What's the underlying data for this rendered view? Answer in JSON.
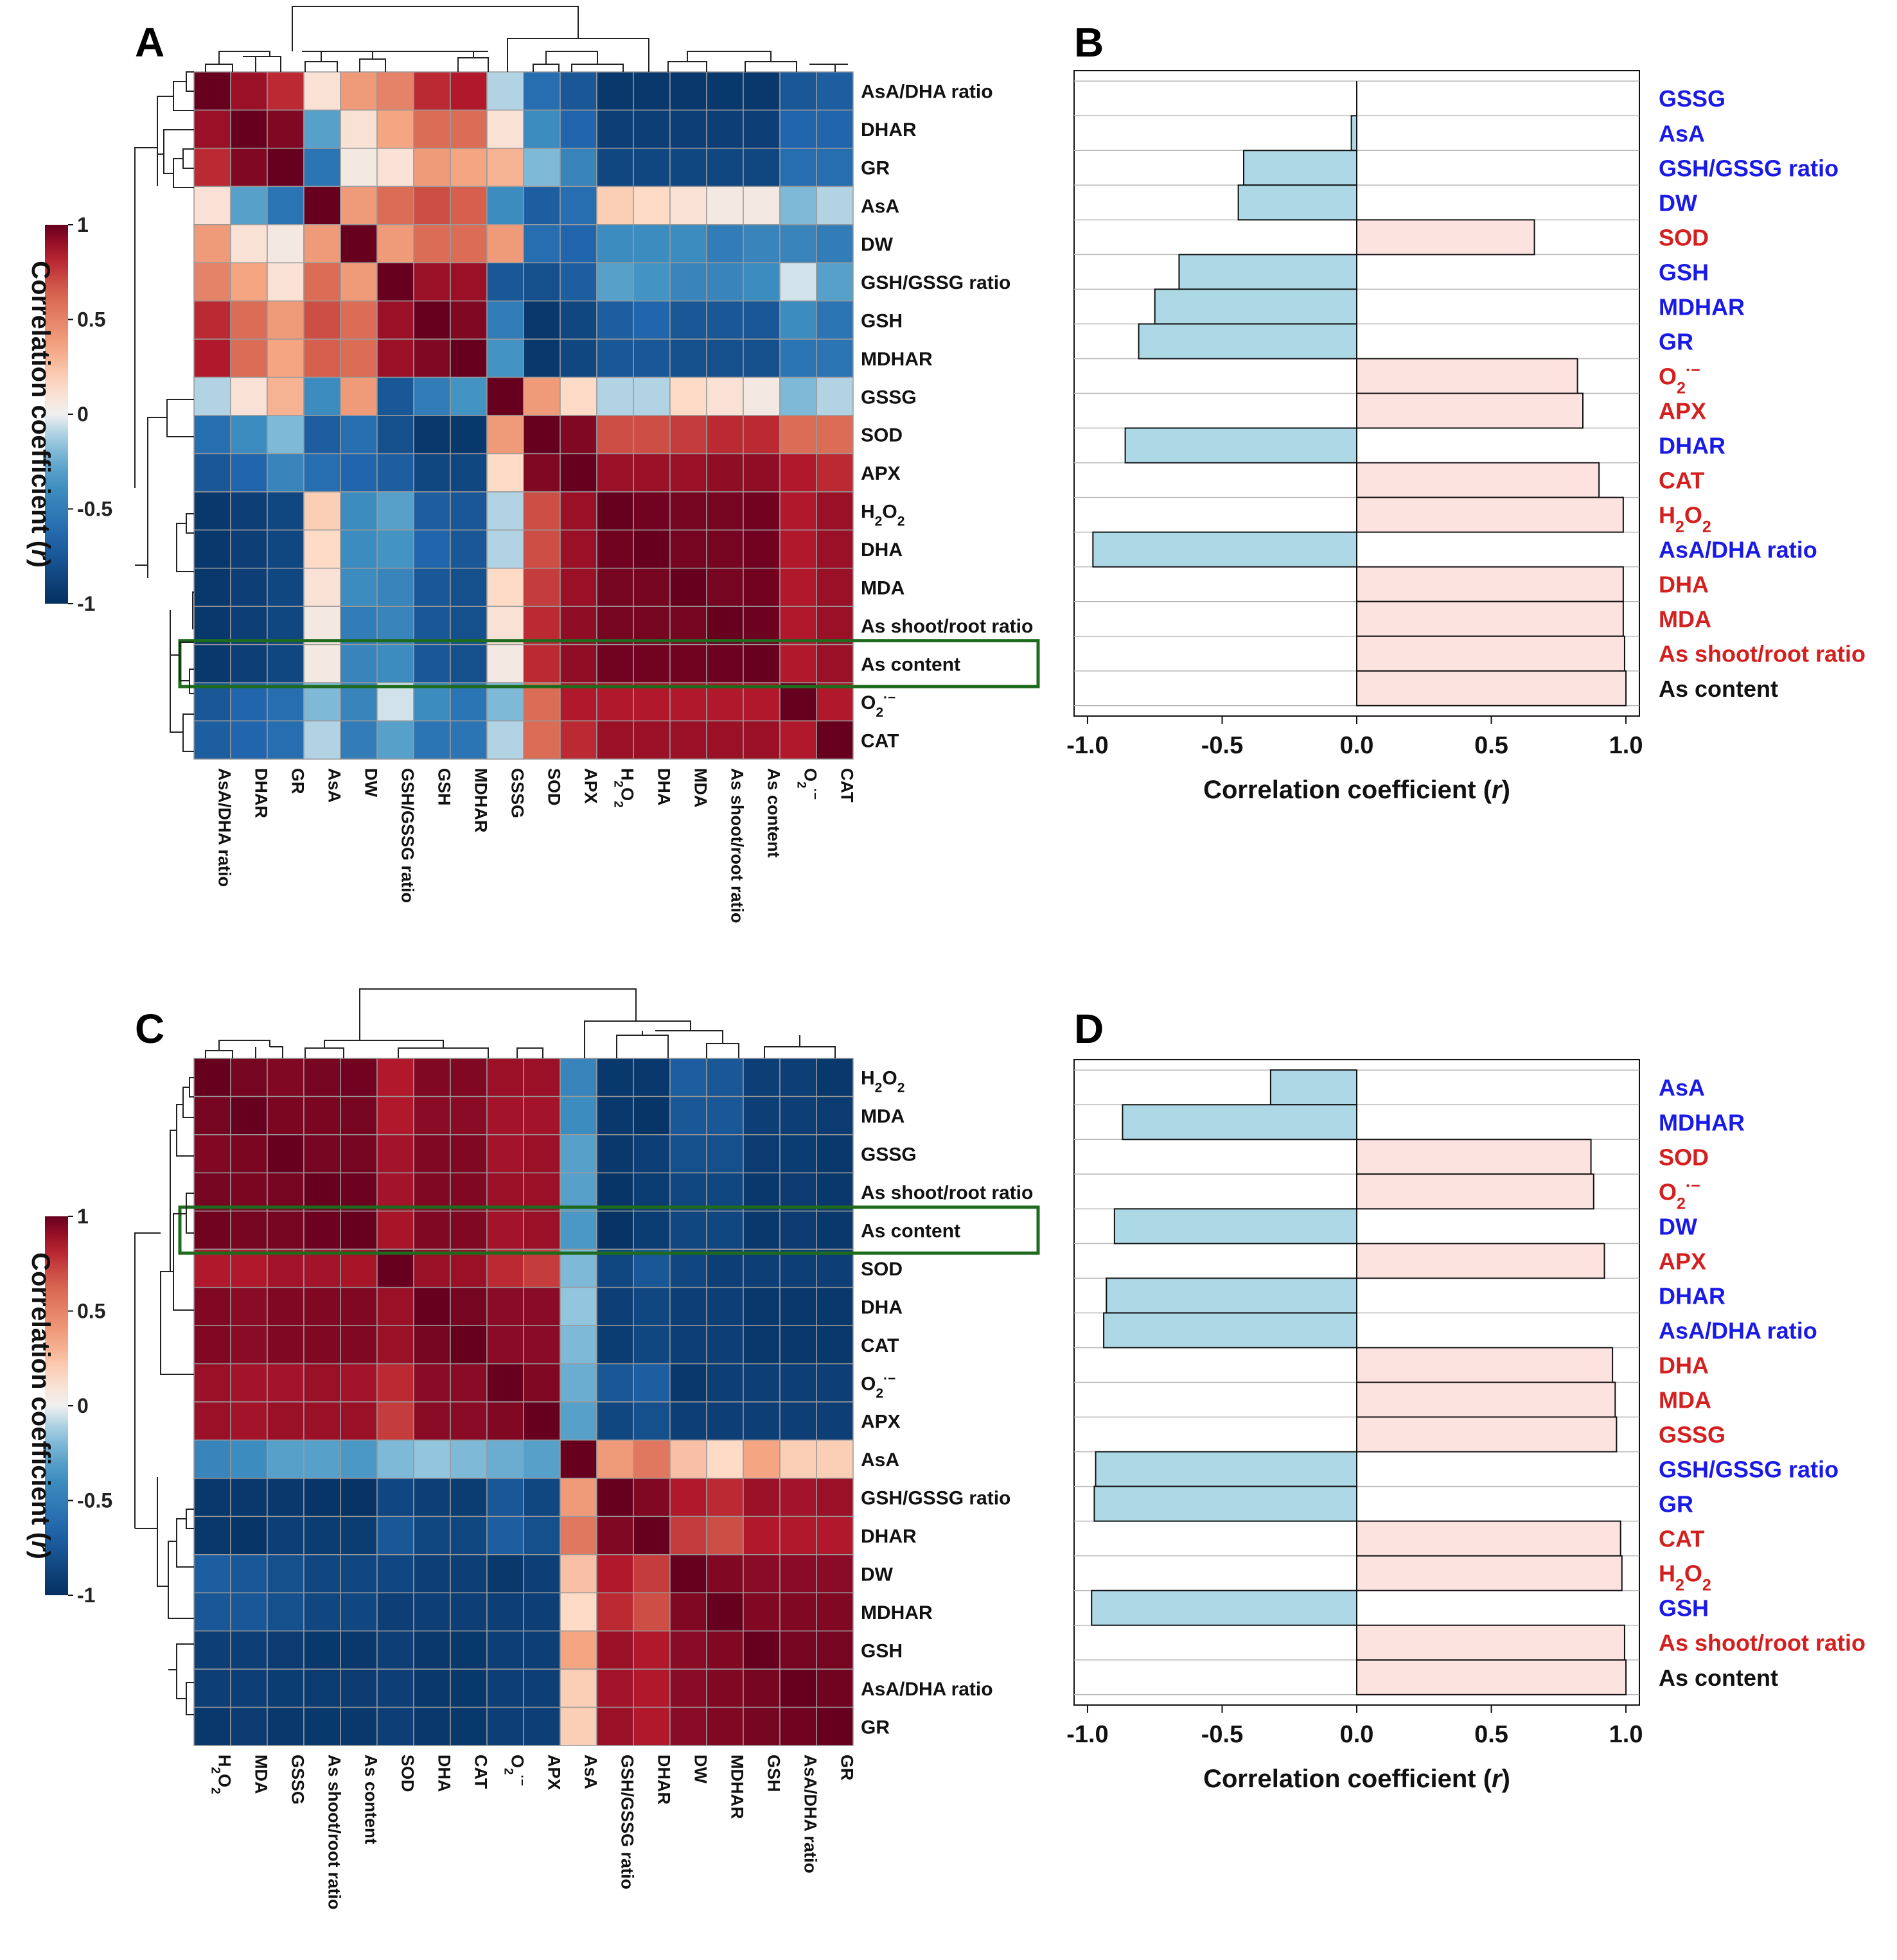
{
  "panels": {
    "A": {
      "letter": "A"
    },
    "B": {
      "letter": "B"
    },
    "C": {
      "letter": "C"
    },
    "D": {
      "letter": "D"
    }
  },
  "colors": {
    "positive": "#d41f1f",
    "negative": "#1a1ae6",
    "neutral": "#111111",
    "bar_pos": "#fde3e0",
    "bar_neg": "#add8e6",
    "highlight": "#1e6b1e"
  },
  "chart_data": [
    {
      "panel": "A",
      "type": "heatmap",
      "title": "",
      "row_labels": [
        "AsA/DHA ratio",
        "DHAR",
        "GR",
        "AsA",
        "DW",
        "GSH/GSSG ratio",
        "GSH",
        "MDHAR",
        "GSSG",
        "SOD",
        "APX",
        "H2O2",
        "DHA",
        "MDA",
        "As shoot/root ratio",
        "As content",
        "O2·−",
        "CAT"
      ],
      "col_labels": [
        "AsA/DHA ratio",
        "DHAR",
        "GR",
        "AsA",
        "DW",
        "GSH/GSSG ratio",
        "GSH",
        "MDHAR",
        "GSSG",
        "SOD",
        "APX",
        "H2O2",
        "DHA",
        "MDA",
        "As shoot/root ratio",
        "As content",
        "O2·−",
        "CAT"
      ],
      "highlight_row": "As content",
      "matrix": [
        [
          1.0,
          0.9,
          0.8,
          0.1,
          0.4,
          0.5,
          0.8,
          0.85,
          -0.1,
          -0.6,
          -0.75,
          -0.95,
          -0.95,
          -0.95,
          -0.95,
          -0.95,
          -0.75,
          -0.7
        ],
        [
          0.9,
          1.0,
          0.95,
          -0.3,
          0.1,
          0.35,
          0.6,
          0.6,
          0.1,
          -0.4,
          -0.65,
          -0.9,
          -0.9,
          -0.9,
          -0.9,
          -0.9,
          -0.65,
          -0.65
        ],
        [
          0.8,
          0.95,
          1.0,
          -0.55,
          0.05,
          0.1,
          0.4,
          0.35,
          0.3,
          -0.2,
          -0.45,
          -0.85,
          -0.85,
          -0.85,
          -0.85,
          -0.85,
          -0.6,
          -0.6
        ],
        [
          0.1,
          -0.3,
          -0.55,
          1.0,
          0.4,
          0.6,
          0.7,
          0.65,
          -0.4,
          -0.7,
          -0.6,
          0.2,
          0.15,
          0.1,
          0.05,
          0.05,
          -0.2,
          -0.1
        ],
        [
          0.4,
          0.1,
          0.05,
          0.4,
          1.0,
          0.4,
          0.6,
          0.6,
          0.4,
          -0.6,
          -0.65,
          -0.4,
          -0.4,
          -0.4,
          -0.5,
          -0.45,
          -0.45,
          -0.5
        ],
        [
          0.5,
          0.35,
          0.1,
          0.6,
          0.4,
          1.0,
          0.9,
          0.9,
          -0.75,
          -0.8,
          -0.7,
          -0.3,
          -0.35,
          -0.45,
          -0.45,
          -0.4,
          -0.05,
          -0.3
        ],
        [
          0.8,
          0.6,
          0.4,
          0.7,
          0.6,
          0.9,
          1.0,
          0.95,
          -0.5,
          -0.95,
          -0.85,
          -0.7,
          -0.65,
          -0.75,
          -0.75,
          -0.75,
          -0.4,
          -0.55
        ],
        [
          0.85,
          0.6,
          0.35,
          0.65,
          0.6,
          0.9,
          0.95,
          1.0,
          -0.35,
          -0.95,
          -0.85,
          -0.75,
          -0.75,
          -0.8,
          -0.8,
          -0.8,
          -0.55,
          -0.55
        ],
        [
          -0.1,
          0.1,
          0.3,
          -0.4,
          0.4,
          -0.75,
          -0.5,
          -0.35,
          1.0,
          0.4,
          0.15,
          -0.1,
          -0.1,
          0.15,
          0.1,
          0.05,
          -0.2,
          -0.1
        ],
        [
          -0.6,
          -0.4,
          -0.2,
          -0.7,
          -0.6,
          -0.8,
          -0.95,
          -0.95,
          0.4,
          1.0,
          0.95,
          0.7,
          0.7,
          0.75,
          0.8,
          0.8,
          0.6,
          0.6
        ],
        [
          -0.75,
          -0.65,
          -0.45,
          -0.6,
          -0.65,
          -0.7,
          -0.85,
          -0.85,
          0.15,
          0.95,
          1.0,
          0.9,
          0.9,
          0.9,
          0.92,
          0.92,
          0.85,
          0.8
        ],
        [
          -0.95,
          -0.9,
          -0.85,
          0.2,
          -0.4,
          -0.3,
          -0.7,
          -0.75,
          -0.1,
          0.7,
          0.9,
          1.0,
          0.98,
          0.97,
          0.97,
          0.98,
          0.85,
          0.9
        ],
        [
          -0.95,
          -0.9,
          -0.85,
          0.15,
          -0.4,
          -0.35,
          -0.65,
          -0.75,
          -0.1,
          0.7,
          0.9,
          0.98,
          1.0,
          0.97,
          0.97,
          0.98,
          0.85,
          0.9
        ],
        [
          -0.95,
          -0.9,
          -0.85,
          0.1,
          -0.4,
          -0.45,
          -0.75,
          -0.8,
          0.15,
          0.75,
          0.9,
          0.97,
          0.97,
          1.0,
          0.97,
          0.98,
          0.85,
          0.9
        ],
        [
          -0.95,
          -0.9,
          -0.85,
          0.05,
          -0.5,
          -0.45,
          -0.75,
          -0.8,
          0.1,
          0.8,
          0.92,
          0.97,
          0.97,
          0.97,
          1.0,
          0.99,
          0.85,
          0.9
        ],
        [
          -0.95,
          -0.9,
          -0.85,
          0.05,
          -0.45,
          -0.4,
          -0.75,
          -0.8,
          0.05,
          0.8,
          0.92,
          0.98,
          0.98,
          0.98,
          0.99,
          1.0,
          0.85,
          0.9
        ],
        [
          -0.75,
          -0.65,
          -0.6,
          -0.2,
          -0.45,
          -0.05,
          -0.4,
          -0.55,
          -0.2,
          0.6,
          0.85,
          0.85,
          0.85,
          0.85,
          0.85,
          0.85,
          1.0,
          0.85
        ],
        [
          -0.7,
          -0.65,
          -0.6,
          -0.1,
          -0.5,
          -0.3,
          -0.55,
          -0.55,
          -0.1,
          0.6,
          0.8,
          0.9,
          0.9,
          0.9,
          0.9,
          0.9,
          0.85,
          1.0
        ]
      ],
      "colorbar": {
        "title": "Correlation coefficient (r)",
        "ticks": [
          "1",
          "0.5",
          "0",
          "-0.5",
          "-1"
        ],
        "range": [
          -1,
          1
        ]
      }
    },
    {
      "panel": "B",
      "type": "bar",
      "orientation": "horizontal",
      "categories": [
        "GSSG",
        "AsA",
        "GSH/GSSG ratio",
        "DW",
        "SOD",
        "GSH",
        "MDHAR",
        "GR",
        "O2·−",
        "APX",
        "DHAR",
        "CAT",
        "H2O2",
        "AsA/DHA ratio",
        "DHA",
        "MDA",
        "As shoot/root ratio",
        "As content"
      ],
      "values": [
        0.0,
        -0.02,
        -0.42,
        -0.44,
        0.66,
        -0.66,
        -0.75,
        -0.81,
        0.82,
        0.84,
        -0.86,
        0.9,
        0.99,
        -0.98,
        0.99,
        0.99,
        0.995,
        1.0
      ],
      "label_colors": [
        "#1a1ae6",
        "#1a1ae6",
        "#1a1ae6",
        "#1a1ae6",
        "#d41f1f",
        "#1a1ae6",
        "#1a1ae6",
        "#1a1ae6",
        "#d41f1f",
        "#d41f1f",
        "#1a1ae6",
        "#d41f1f",
        "#d41f1f",
        "#1a1ae6",
        "#d41f1f",
        "#d41f1f",
        "#d41f1f",
        "#111111"
      ],
      "xlabel": "Correlation coefficient (r)",
      "xlim": [
        -1.05,
        1.05
      ],
      "xticks": [
        "-1.0",
        "-0.5",
        "0.0",
        "0.5",
        "1.0"
      ]
    },
    {
      "panel": "C",
      "type": "heatmap",
      "title": "",
      "row_labels": [
        "H2O2",
        "MDA",
        "GSSG",
        "As shoot/root ratio",
        "As content",
        "SOD",
        "DHA",
        "CAT",
        "O2·−",
        "APX",
        "AsA",
        "GSH/GSSG ratio",
        "DHAR",
        "DW",
        "MDHAR",
        "GSH",
        "AsA/DHA ratio",
        "GR"
      ],
      "col_labels": [
        "H2O2",
        "MDA",
        "GSSG",
        "As shoot/root ratio",
        "As content",
        "SOD",
        "DHA",
        "CAT",
        "O2·−",
        "APX",
        "AsA",
        "GSH/GSSG ratio",
        "DHAR",
        "DW",
        "MDHAR",
        "GSH",
        "AsA/DHA ratio",
        "GR"
      ],
      "highlight_row": "As content",
      "matrix": [
        [
          1.0,
          0.97,
          0.95,
          0.97,
          0.98,
          0.85,
          0.95,
          0.95,
          0.9,
          0.9,
          -0.45,
          -0.95,
          -0.95,
          -0.7,
          -0.75,
          -0.9,
          -0.9,
          -0.95
        ],
        [
          0.97,
          1.0,
          0.96,
          0.96,
          0.97,
          0.85,
          0.93,
          0.93,
          0.88,
          0.88,
          -0.4,
          -0.95,
          -0.97,
          -0.75,
          -0.75,
          -0.9,
          -0.9,
          -0.93
        ],
        [
          0.95,
          0.96,
          1.0,
          0.97,
          0.97,
          0.88,
          0.95,
          0.95,
          0.88,
          0.9,
          -0.3,
          -0.95,
          -0.9,
          -0.8,
          -0.8,
          -0.93,
          -0.92,
          -0.95
        ],
        [
          0.97,
          0.96,
          0.97,
          1.0,
          0.99,
          0.88,
          0.95,
          0.95,
          0.9,
          0.9,
          -0.3,
          -0.97,
          -0.92,
          -0.85,
          -0.85,
          -0.95,
          -0.93,
          -0.95
        ],
        [
          0.98,
          0.97,
          0.97,
          0.99,
          1.0,
          0.87,
          0.95,
          0.95,
          0.88,
          0.9,
          -0.33,
          -0.98,
          -0.92,
          -0.85,
          -0.85,
          -0.95,
          -0.93,
          -0.95
        ],
        [
          0.85,
          0.85,
          0.88,
          0.88,
          0.87,
          1.0,
          0.9,
          0.9,
          0.8,
          0.75,
          -0.2,
          -0.85,
          -0.75,
          -0.85,
          -0.9,
          -0.9,
          -0.9,
          -0.9
        ],
        [
          0.95,
          0.93,
          0.95,
          0.95,
          0.95,
          0.9,
          1.0,
          0.97,
          0.93,
          0.93,
          -0.15,
          -0.9,
          -0.85,
          -0.9,
          -0.9,
          -0.95,
          -0.95,
          -0.95
        ],
        [
          0.95,
          0.93,
          0.95,
          0.95,
          0.95,
          0.9,
          0.97,
          1.0,
          0.93,
          0.93,
          -0.2,
          -0.92,
          -0.85,
          -0.9,
          -0.9,
          -0.95,
          -0.95,
          -0.95
        ],
        [
          0.9,
          0.88,
          0.88,
          0.9,
          0.88,
          0.8,
          0.93,
          0.93,
          1.0,
          0.95,
          -0.25,
          -0.75,
          -0.7,
          -0.95,
          -0.9,
          -0.9,
          -0.9,
          -0.9
        ],
        [
          0.9,
          0.88,
          0.9,
          0.9,
          0.9,
          0.75,
          0.93,
          0.93,
          0.95,
          1.0,
          -0.3,
          -0.85,
          -0.8,
          -0.9,
          -0.9,
          -0.9,
          -0.9,
          -0.9
        ],
        [
          -0.45,
          -0.4,
          -0.3,
          -0.3,
          -0.33,
          -0.2,
          -0.15,
          -0.2,
          -0.25,
          -0.3,
          1.0,
          0.4,
          0.55,
          0.25,
          0.15,
          0.35,
          0.2,
          0.2
        ],
        [
          -0.95,
          -0.95,
          -0.95,
          -0.97,
          -0.98,
          -0.85,
          -0.9,
          -0.92,
          -0.75,
          -0.85,
          0.4,
          1.0,
          0.95,
          0.85,
          0.8,
          0.9,
          0.88,
          0.9
        ],
        [
          -0.95,
          -0.97,
          -0.9,
          -0.92,
          -0.92,
          -0.75,
          -0.85,
          -0.85,
          -0.7,
          -0.8,
          0.55,
          0.95,
          1.0,
          0.75,
          0.7,
          0.85,
          0.85,
          0.85
        ],
        [
          -0.7,
          -0.75,
          -0.8,
          -0.85,
          -0.85,
          -0.85,
          -0.9,
          -0.9,
          -0.95,
          -0.9,
          0.25,
          0.85,
          0.75,
          1.0,
          0.95,
          0.93,
          0.93,
          0.93
        ],
        [
          -0.75,
          -0.75,
          -0.8,
          -0.85,
          -0.85,
          -0.9,
          -0.9,
          -0.9,
          -0.9,
          -0.9,
          0.15,
          0.8,
          0.7,
          0.95,
          1.0,
          0.95,
          0.95,
          0.95
        ],
        [
          -0.9,
          -0.9,
          -0.93,
          -0.95,
          -0.95,
          -0.9,
          -0.95,
          -0.95,
          -0.9,
          -0.9,
          0.35,
          0.9,
          0.85,
          0.93,
          0.95,
          1.0,
          0.97,
          0.97
        ],
        [
          -0.9,
          -0.9,
          -0.92,
          -0.93,
          -0.93,
          -0.9,
          -0.95,
          -0.95,
          -0.9,
          -0.9,
          0.2,
          0.88,
          0.85,
          0.93,
          0.95,
          0.97,
          1.0,
          0.98
        ],
        [
          -0.95,
          -0.93,
          -0.95,
          -0.95,
          -0.95,
          -0.9,
          -0.95,
          -0.95,
          -0.9,
          -0.9,
          0.2,
          0.9,
          0.85,
          0.93,
          0.95,
          0.97,
          0.98,
          1.0
        ]
      ],
      "colorbar": {
        "title": "Correlation coefficient (r)",
        "ticks": [
          "1",
          "0.5",
          "0",
          "-0.5",
          "-1"
        ],
        "range": [
          -1,
          1
        ]
      }
    },
    {
      "panel": "D",
      "type": "bar",
      "orientation": "horizontal",
      "categories": [
        "AsA",
        "MDHAR",
        "SOD",
        "O2·−",
        "DW",
        "APX",
        "DHAR",
        "AsA/DHA ratio",
        "DHA",
        "MDA",
        "GSSG",
        "GSH/GSSG ratio",
        "GR",
        "CAT",
        "H2O2",
        "GSH",
        "As shoot/root ratio",
        "As content"
      ],
      "values": [
        -0.32,
        -0.87,
        0.87,
        0.88,
        -0.9,
        0.92,
        -0.93,
        -0.94,
        0.95,
        0.96,
        0.965,
        -0.97,
        -0.975,
        0.98,
        0.985,
        -0.985,
        0.995,
        1.0
      ],
      "label_colors": [
        "#1a1ae6",
        "#1a1ae6",
        "#d41f1f",
        "#d41f1f",
        "#1a1ae6",
        "#d41f1f",
        "#1a1ae6",
        "#1a1ae6",
        "#d41f1f",
        "#d41f1f",
        "#d41f1f",
        "#1a1ae6",
        "#1a1ae6",
        "#d41f1f",
        "#d41f1f",
        "#1a1ae6",
        "#d41f1f",
        "#111111"
      ],
      "xlabel": "Correlation coefficient (r)",
      "xlim": [
        -1.05,
        1.05
      ],
      "xticks": [
        "-1.0",
        "-0.5",
        "0.0",
        "0.5",
        "1.0"
      ]
    }
  ]
}
